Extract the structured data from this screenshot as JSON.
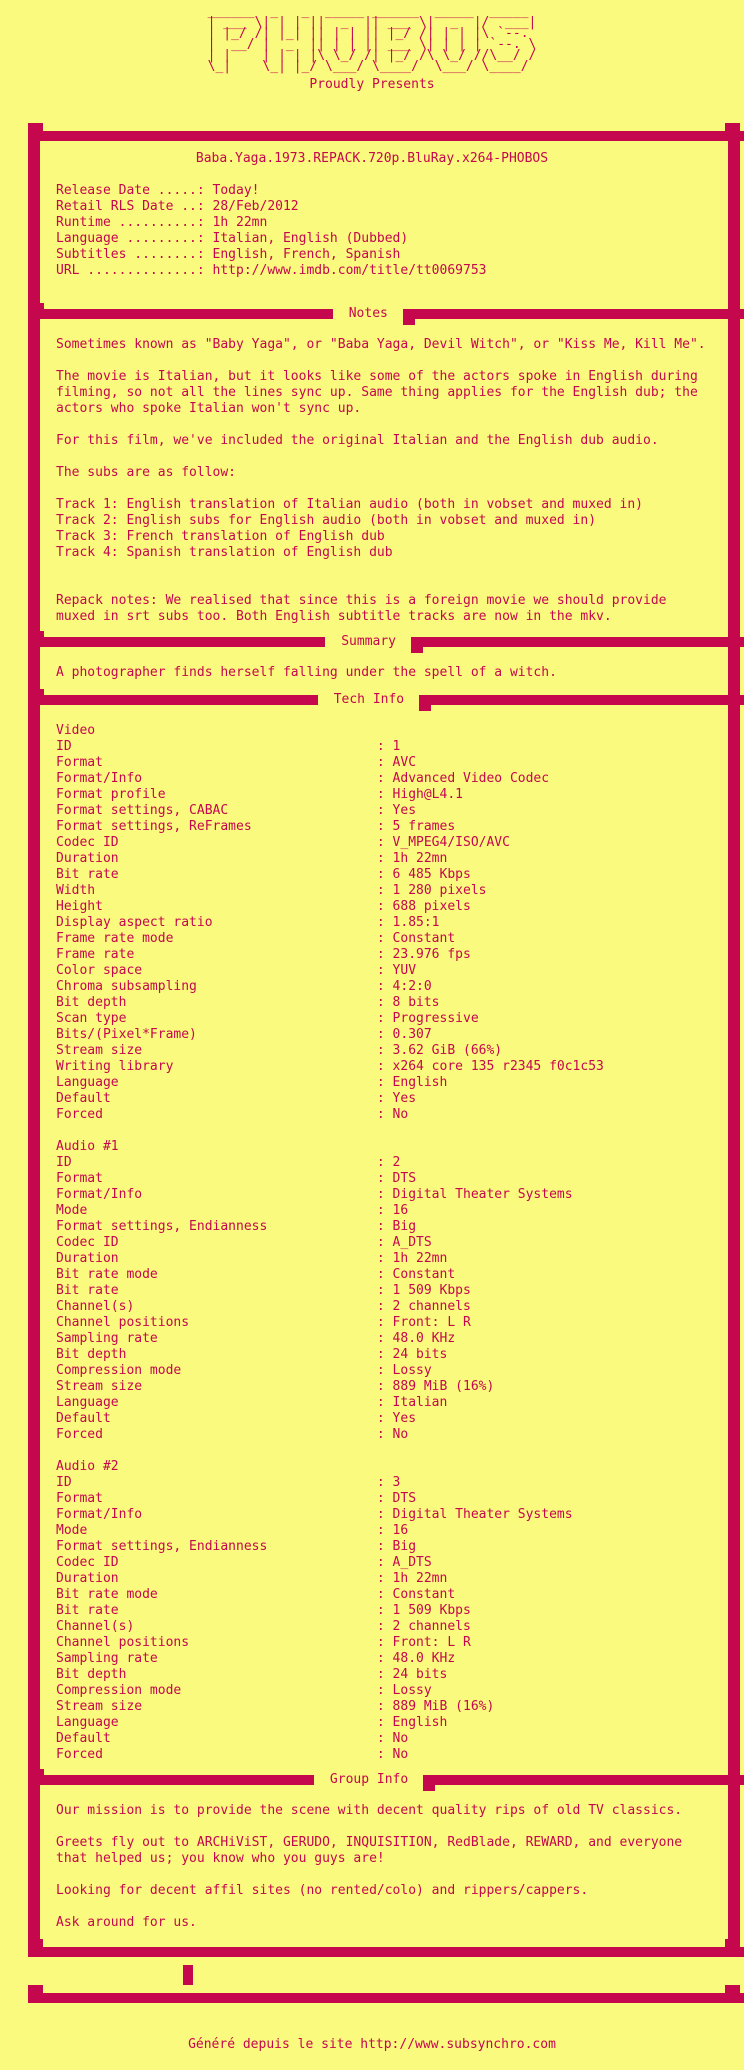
{
  "colors": {
    "background": "#FAFA7E",
    "accent": "#C5074D"
  },
  "logo": {
    "art": [
      "______  _   _  _____ ______  _____  _____ ",
      "| ___ \\| | | ||  _  || ___ \\|  _  |/  ___|",
      "| |_/ /| |_| || | | || |_/ /| | | |\\ `--. ",
      "|  __/ |  _  || | | || ___ \\| | | | `--. \\",
      "| |    | | | |\\ \\_/ /| |_/ /\\ \\_/ //\\__/ /",
      "\\_|    \\_| |_/ \\___/ \\____/  \\___/ \\____/ "
    ],
    "tagline": "Proudly Presents"
  },
  "release": {
    "title": "Baba.Yaga.1973.REPACK.720p.BluRay.x264-PHOBOS",
    "fields": [
      {
        "label": "Release Date .....",
        "value": "Today!"
      },
      {
        "label": "Retail RLS Date ..",
        "value": "28/Feb/2012"
      },
      {
        "label": "Runtime ..........",
        "value": "1h 22mn"
      },
      {
        "label": "Language .........",
        "value": "Italian, English (Dubbed)"
      },
      {
        "label": "Subtitles ........",
        "value": "English, French, Spanish"
      },
      {
        "label": "URL ..............",
        "value": "http://www.imdb.com/title/tt0069753"
      }
    ]
  },
  "sections": {
    "notes": {
      "title": "Notes",
      "lines": [
        "Sometimes known as \"Baby Yaga\", or \"Baba Yaga, Devil Witch\", or \"Kiss Me, Kill Me\".",
        "",
        "The movie is Italian, but it looks like some of the actors spoke in English during",
        "filming, so not all the lines sync up. Same thing applies for the English dub; the",
        "actors who spoke Italian won't sync up.",
        "",
        "For this film, we've included the original Italian and the English dub audio.",
        "",
        "The subs are as follow:",
        "",
        "Track 1: English translation of Italian audio (both in vobset and muxed in)",
        "Track 2: English subs for English audio (both in vobset and muxed in)",
        "Track 3: French translation of English dub",
        "Track 4: Spanish translation of English dub",
        "",
        "",
        "Repack notes: We realised that since this is a foreign movie we should provide",
        "muxed in srt subs too. Both English subtitle tracks are now in the mkv."
      ]
    },
    "summary": {
      "title": "Summary",
      "text": "A photographer finds herself falling under the spell of a witch."
    },
    "tech": {
      "title": "Tech Info",
      "groups": [
        {
          "name": "Video",
          "rows": [
            {
              "label": "ID",
              "value": "1"
            },
            {
              "label": "Format",
              "value": "AVC"
            },
            {
              "label": "Format/Info",
              "value": "Advanced Video Codec"
            },
            {
              "label": "Format profile",
              "value": "High@L4.1"
            },
            {
              "label": "Format settings, CABAC",
              "value": "Yes"
            },
            {
              "label": "Format settings, ReFrames",
              "value": "5 frames"
            },
            {
              "label": "Codec ID",
              "value": "V_MPEG4/ISO/AVC"
            },
            {
              "label": "Duration",
              "value": "1h 22mn"
            },
            {
              "label": "Bit rate",
              "value": "6 485 Kbps"
            },
            {
              "label": "Width",
              "value": "1 280 pixels"
            },
            {
              "label": "Height",
              "value": "688 pixels"
            },
            {
              "label": "Display aspect ratio",
              "value": "1.85:1"
            },
            {
              "label": "Frame rate mode",
              "value": "Constant"
            },
            {
              "label": "Frame rate",
              "value": "23.976 fps"
            },
            {
              "label": "Color space",
              "value": "YUV"
            },
            {
              "label": "Chroma subsampling",
              "value": "4:2:0"
            },
            {
              "label": "Bit depth",
              "value": "8 bits"
            },
            {
              "label": "Scan type",
              "value": "Progressive"
            },
            {
              "label": "Bits/(Pixel*Frame)",
              "value": "0.307"
            },
            {
              "label": "Stream size",
              "value": "3.62 GiB (66%)"
            },
            {
              "label": "Writing library",
              "value": "x264 core 135 r2345 f0c1c53"
            },
            {
              "label": "Language",
              "value": "English"
            },
            {
              "label": "Default",
              "value": "Yes"
            },
            {
              "label": "Forced",
              "value": "No"
            }
          ]
        },
        {
          "name": "Audio #1",
          "rows": [
            {
              "label": "ID",
              "value": "2"
            },
            {
              "label": "Format",
              "value": "DTS"
            },
            {
              "label": "Format/Info",
              "value": "Digital Theater Systems"
            },
            {
              "label": "Mode",
              "value": "16"
            },
            {
              "label": "Format settings, Endianness",
              "value": "Big"
            },
            {
              "label": "Codec ID",
              "value": "A_DTS"
            },
            {
              "label": "Duration",
              "value": "1h 22mn"
            },
            {
              "label": "Bit rate mode",
              "value": "Constant"
            },
            {
              "label": "Bit rate",
              "value": "1 509 Kbps"
            },
            {
              "label": "Channel(s)",
              "value": "2 channels"
            },
            {
              "label": "Channel positions",
              "value": "Front: L R"
            },
            {
              "label": "Sampling rate",
              "value": "48.0 KHz"
            },
            {
              "label": "Bit depth",
              "value": "24 bits"
            },
            {
              "label": "Compression mode",
              "value": "Lossy"
            },
            {
              "label": "Stream size",
              "value": "889 MiB (16%)"
            },
            {
              "label": "Language",
              "value": "Italian"
            },
            {
              "label": "Default",
              "value": "Yes"
            },
            {
              "label": "Forced",
              "value": "No"
            }
          ]
        },
        {
          "name": "Audio #2",
          "rows": [
            {
              "label": "ID",
              "value": "3"
            },
            {
              "label": "Format",
              "value": "DTS"
            },
            {
              "label": "Format/Info",
              "value": "Digital Theater Systems"
            },
            {
              "label": "Mode",
              "value": "16"
            },
            {
              "label": "Format settings, Endianness",
              "value": "Big"
            },
            {
              "label": "Codec ID",
              "value": "A_DTS"
            },
            {
              "label": "Duration",
              "value": "1h 22mn"
            },
            {
              "label": "Bit rate mode",
              "value": "Constant"
            },
            {
              "label": "Bit rate",
              "value": "1 509 Kbps"
            },
            {
              "label": "Channel(s)",
              "value": "2 channels"
            },
            {
              "label": "Channel positions",
              "value": "Front: L R"
            },
            {
              "label": "Sampling rate",
              "value": "48.0 KHz"
            },
            {
              "label": "Bit depth",
              "value": "24 bits"
            },
            {
              "label": "Compression mode",
              "value": "Lossy"
            },
            {
              "label": "Stream size",
              "value": "889 MiB (16%)"
            },
            {
              "label": "Language",
              "value": "English"
            },
            {
              "label": "Default",
              "value": "No"
            },
            {
              "label": "Forced",
              "value": "No"
            }
          ]
        }
      ]
    },
    "group": {
      "title": "Group Info",
      "lines": [
        "Our mission is to provide the scene with decent quality rips of old TV classics.",
        "",
        "Greets fly out to ARCHiViST, GERUDO, INQUISITION, RedBlade, REWARD, and everyone",
        "that helped us; you know who you guys are!",
        "",
        "Looking for decent affil sites (no rented/colo) and rippers/cappers.",
        "",
        "Ask around for us."
      ]
    }
  },
  "footer": {
    "text": "Généré depuis le site  http://www.subsynchro.com"
  }
}
